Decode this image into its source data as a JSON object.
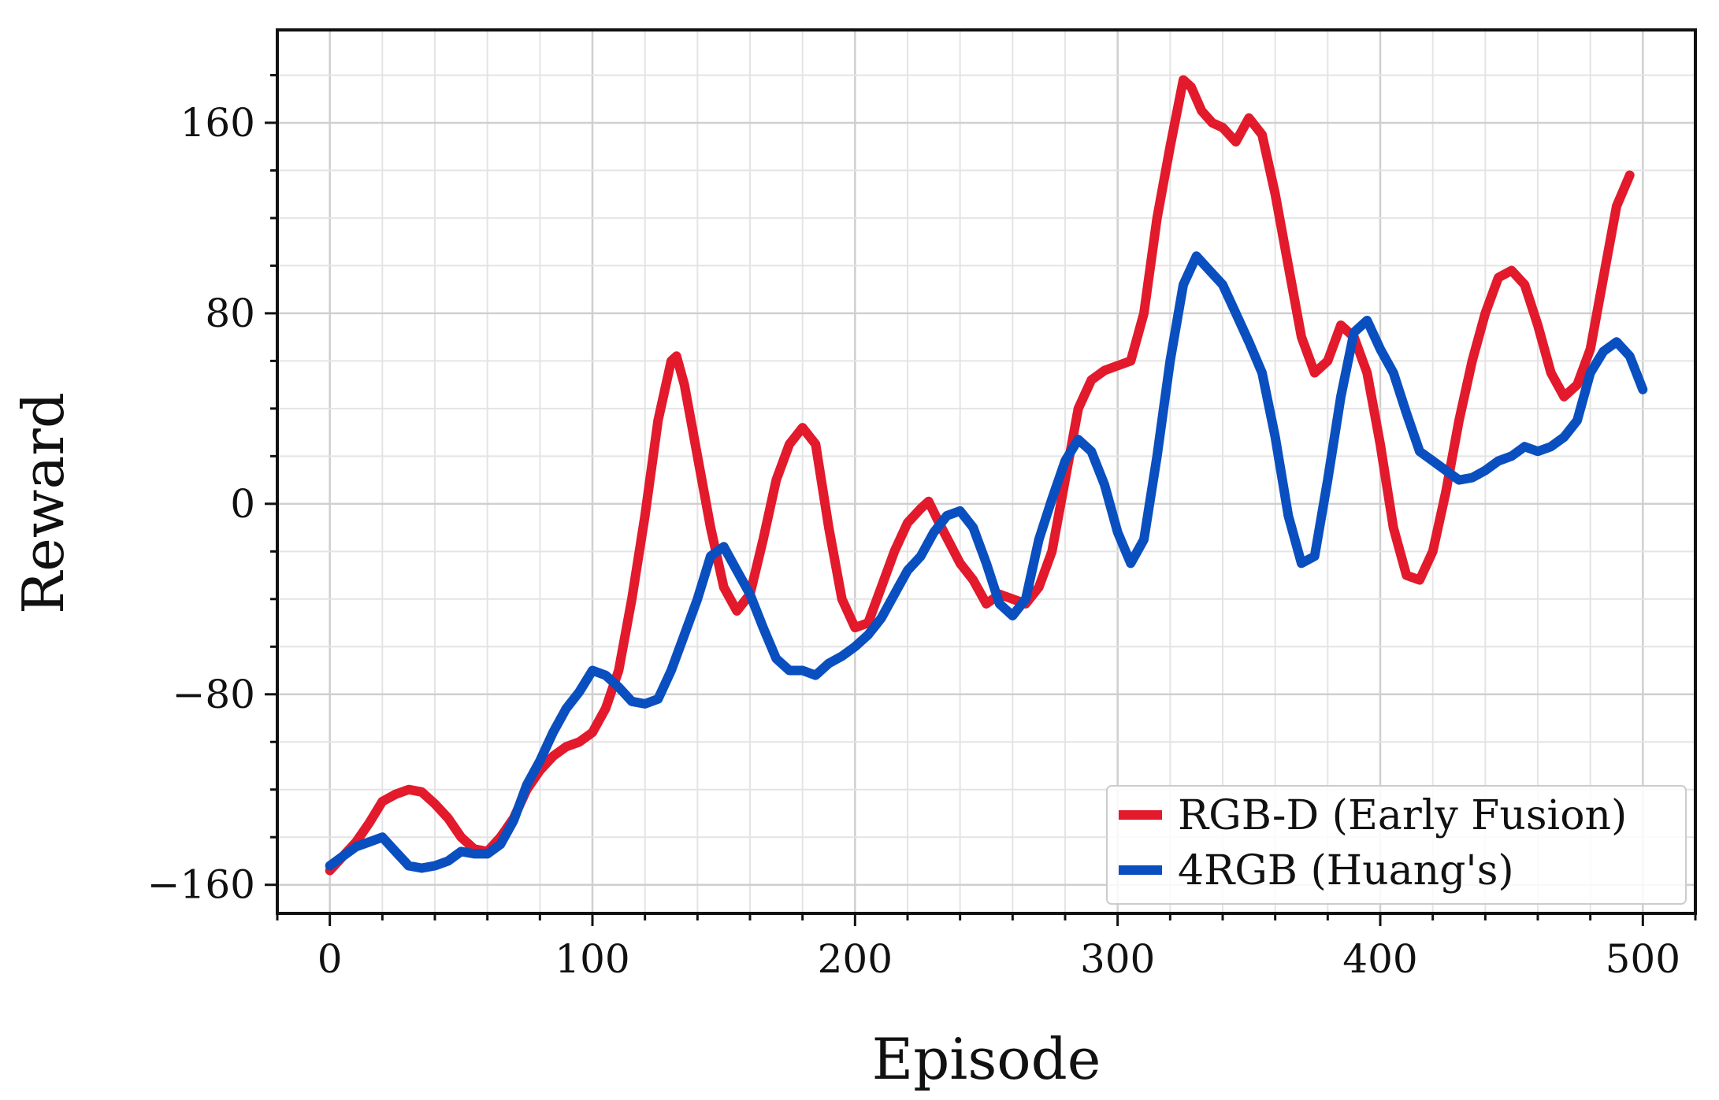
{
  "chart_data": {
    "type": "line",
    "title": "",
    "xlabel": "Episode",
    "ylabel": "Reward",
    "xlim": [
      -20,
      520
    ],
    "ylim": [
      -172,
      199
    ],
    "xticks": [
      0,
      100,
      200,
      300,
      400,
      500
    ],
    "xtick_labels": [
      "0",
      "100",
      "200",
      "300",
      "400",
      "500"
    ],
    "yticks": [
      -160,
      -80,
      0,
      80,
      160
    ],
    "ytick_labels": [
      "−160",
      "−80",
      "0",
      "80",
      "160"
    ],
    "grid": true,
    "legend_position": "lower-right",
    "series": [
      {
        "name": "RGB-D (Early Fusion)",
        "color": "#e21a2c",
        "points": [
          [
            0,
            -154
          ],
          [
            5,
            -148
          ],
          [
            10,
            -142
          ],
          [
            15,
            -134
          ],
          [
            20,
            -125
          ],
          [
            25,
            -122
          ],
          [
            30,
            -120
          ],
          [
            35,
            -121
          ],
          [
            40,
            -126
          ],
          [
            45,
            -132
          ],
          [
            50,
            -140
          ],
          [
            55,
            -145
          ],
          [
            60,
            -146
          ],
          [
            65,
            -140
          ],
          [
            70,
            -132
          ],
          [
            75,
            -120
          ],
          [
            80,
            -112
          ],
          [
            85,
            -106
          ],
          [
            90,
            -102
          ],
          [
            95,
            -100
          ],
          [
            100,
            -96
          ],
          [
            105,
            -86
          ],
          [
            110,
            -70
          ],
          [
            115,
            -40
          ],
          [
            120,
            -5
          ],
          [
            125,
            35
          ],
          [
            130,
            60
          ],
          [
            132,
            62
          ],
          [
            135,
            50
          ],
          [
            140,
            20
          ],
          [
            145,
            -10
          ],
          [
            150,
            -35
          ],
          [
            155,
            -45
          ],
          [
            160,
            -38
          ],
          [
            165,
            -15
          ],
          [
            170,
            10
          ],
          [
            175,
            25
          ],
          [
            180,
            32
          ],
          [
            185,
            25
          ],
          [
            190,
            -10
          ],
          [
            195,
            -40
          ],
          [
            200,
            -52
          ],
          [
            205,
            -50
          ],
          [
            210,
            -35
          ],
          [
            215,
            -20
          ],
          [
            220,
            -8
          ],
          [
            225,
            -2
          ],
          [
            228,
            1
          ],
          [
            232,
            -8
          ],
          [
            240,
            -25
          ],
          [
            245,
            -32
          ],
          [
            250,
            -42
          ],
          [
            255,
            -38
          ],
          [
            260,
            -40
          ],
          [
            265,
            -42
          ],
          [
            270,
            -35
          ],
          [
            275,
            -20
          ],
          [
            280,
            10
          ],
          [
            285,
            40
          ],
          [
            290,
            52
          ],
          [
            295,
            56
          ],
          [
            300,
            58
          ],
          [
            305,
            60
          ],
          [
            310,
            80
          ],
          [
            315,
            120
          ],
          [
            320,
            150
          ],
          [
            325,
            178
          ],
          [
            328,
            175
          ],
          [
            332,
            165
          ],
          [
            336,
            160
          ],
          [
            340,
            158
          ],
          [
            345,
            152
          ],
          [
            350,
            162
          ],
          [
            355,
            155
          ],
          [
            360,
            130
          ],
          [
            365,
            100
          ],
          [
            370,
            70
          ],
          [
            375,
            55
          ],
          [
            380,
            60
          ],
          [
            385,
            75
          ],
          [
            390,
            70
          ],
          [
            395,
            55
          ],
          [
            400,
            25
          ],
          [
            405,
            -10
          ],
          [
            410,
            -30
          ],
          [
            415,
            -32
          ],
          [
            420,
            -20
          ],
          [
            425,
            5
          ],
          [
            430,
            35
          ],
          [
            435,
            60
          ],
          [
            440,
            80
          ],
          [
            445,
            95
          ],
          [
            450,
            98
          ],
          [
            455,
            92
          ],
          [
            460,
            75
          ],
          [
            465,
            55
          ],
          [
            470,
            45
          ],
          [
            475,
            50
          ],
          [
            480,
            65
          ],
          [
            485,
            95
          ],
          [
            490,
            125
          ],
          [
            495,
            138
          ]
        ]
      },
      {
        "name": "4RGB (Huang's)",
        "color": "#0a4fc0",
        "points": [
          [
            0,
            -152
          ],
          [
            5,
            -148
          ],
          [
            10,
            -144
          ],
          [
            15,
            -142
          ],
          [
            20,
            -140
          ],
          [
            25,
            -146
          ],
          [
            30,
            -152
          ],
          [
            35,
            -153
          ],
          [
            40,
            -152
          ],
          [
            45,
            -150
          ],
          [
            50,
            -146
          ],
          [
            55,
            -147
          ],
          [
            60,
            -147
          ],
          [
            65,
            -143
          ],
          [
            70,
            -133
          ],
          [
            75,
            -118
          ],
          [
            80,
            -108
          ],
          [
            85,
            -96
          ],
          [
            90,
            -86
          ],
          [
            95,
            -79
          ],
          [
            100,
            -70
          ],
          [
            105,
            -72
          ],
          [
            110,
            -77
          ],
          [
            115,
            -83
          ],
          [
            120,
            -84
          ],
          [
            125,
            -82
          ],
          [
            130,
            -70
          ],
          [
            135,
            -55
          ],
          [
            140,
            -40
          ],
          [
            145,
            -22
          ],
          [
            150,
            -18
          ],
          [
            155,
            -28
          ],
          [
            160,
            -38
          ],
          [
            165,
            -52
          ],
          [
            170,
            -65
          ],
          [
            175,
            -70
          ],
          [
            180,
            -70
          ],
          [
            185,
            -72
          ],
          [
            190,
            -67
          ],
          [
            195,
            -64
          ],
          [
            200,
            -60
          ],
          [
            205,
            -55
          ],
          [
            210,
            -48
          ],
          [
            215,
            -38
          ],
          [
            220,
            -28
          ],
          [
            225,
            -22
          ],
          [
            230,
            -12
          ],
          [
            235,
            -5
          ],
          [
            240,
            -3
          ],
          [
            245,
            -10
          ],
          [
            250,
            -25
          ],
          [
            255,
            -42
          ],
          [
            260,
            -47
          ],
          [
            265,
            -40
          ],
          [
            270,
            -15
          ],
          [
            275,
            2
          ],
          [
            280,
            18
          ],
          [
            285,
            27
          ],
          [
            290,
            22
          ],
          [
            295,
            8
          ],
          [
            300,
            -12
          ],
          [
            305,
            -25
          ],
          [
            310,
            -15
          ],
          [
            315,
            20
          ],
          [
            320,
            60
          ],
          [
            325,
            92
          ],
          [
            330,
            104
          ],
          [
            335,
            98
          ],
          [
            340,
            92
          ],
          [
            345,
            80
          ],
          [
            350,
            68
          ],
          [
            355,
            55
          ],
          [
            360,
            28
          ],
          [
            365,
            -5
          ],
          [
            370,
            -25
          ],
          [
            375,
            -22
          ],
          [
            380,
            10
          ],
          [
            385,
            45
          ],
          [
            390,
            72
          ],
          [
            395,
            77
          ],
          [
            400,
            65
          ],
          [
            405,
            55
          ],
          [
            410,
            38
          ],
          [
            415,
            22
          ],
          [
            420,
            18
          ],
          [
            425,
            14
          ],
          [
            430,
            10
          ],
          [
            435,
            11
          ],
          [
            440,
            14
          ],
          [
            445,
            18
          ],
          [
            450,
            20
          ],
          [
            455,
            24
          ],
          [
            460,
            22
          ],
          [
            465,
            24
          ],
          [
            470,
            28
          ],
          [
            475,
            35
          ],
          [
            480,
            55
          ],
          [
            485,
            64
          ],
          [
            490,
            68
          ],
          [
            495,
            62
          ],
          [
            500,
            48
          ]
        ]
      }
    ]
  }
}
